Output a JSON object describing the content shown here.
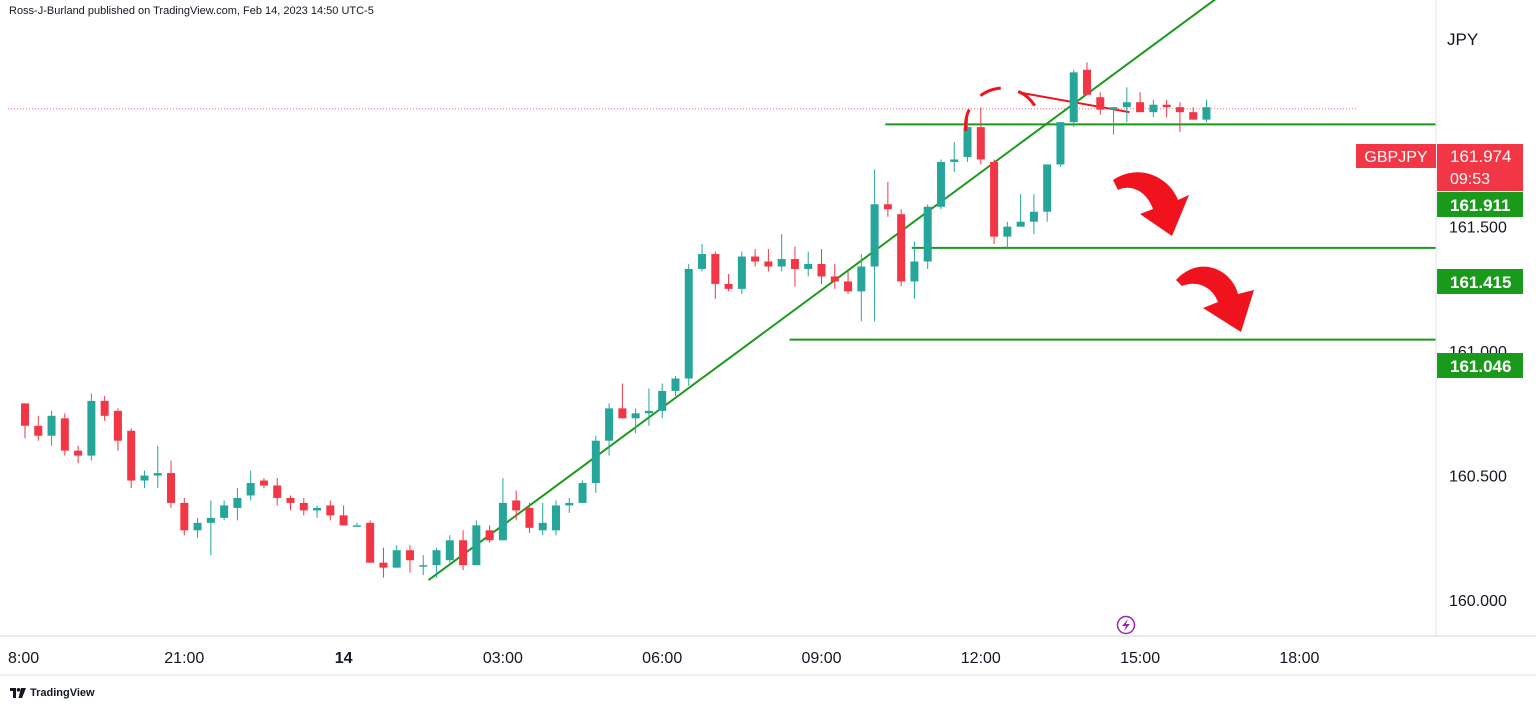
{
  "header": {
    "published": "Ross-J-Burland published on TradingView.com, Feb 14, 2023 14:50 UTC-5"
  },
  "currency": "JPY",
  "footer": {
    "brand": "TradingView",
    "logo_icon": "tradingview-logo-icon"
  },
  "colors": {
    "up": "#26a69a",
    "down": "#f23645",
    "trend": "#1a9a1a",
    "level": "#1a9a1a",
    "arrow": "#f0131e",
    "label_red": "#f23645",
    "label_green": "#1a9a1a",
    "grid": "#e0e3eb",
    "text": "#131722",
    "lightning": "#9c27b0"
  },
  "chart_data": {
    "type": "candlestick",
    "symbol": "GBPJPY",
    "y_ticks": [
      "160.000",
      "160.500",
      "161.000",
      "161.500"
    ],
    "x_ticks": [
      "8:00",
      "21:00",
      "14",
      "03:00",
      "06:00",
      "09:00",
      "12:00",
      "15:00",
      "18:00"
    ],
    "x_ticks_hours": [
      18,
      21,
      24,
      27,
      30,
      33,
      36,
      39,
      42
    ],
    "ylim": [
      159.85,
      162.3
    ],
    "current_price": {
      "value": 161.974,
      "label": "161.974",
      "countdown": "09:53"
    },
    "levels": [
      {
        "value": 161.911,
        "label": "161.911",
        "start_hour": 34.2
      },
      {
        "value": 161.415,
        "label": "161.415",
        "start_hour": 34.7
      },
      {
        "value": 161.046,
        "label": "161.046",
        "start_hour": 32.4
      }
    ],
    "trendline": {
      "x1": 25.6,
      "y1": 160.08,
      "x2": 41.6,
      "y2": 162.6
    },
    "resistance_line": {
      "x1": 36.7,
      "y1": 162.04,
      "x2": 38.8,
      "y2": 161.96
    },
    "candles_start_hour": 18.0,
    "candle_interval_hours": 0.25,
    "candles": [
      [
        160.79,
        160.79,
        160.65,
        160.7
      ],
      [
        160.7,
        160.74,
        160.64,
        160.66
      ],
      [
        160.66,
        160.76,
        160.62,
        160.74
      ],
      [
        160.73,
        160.75,
        160.58,
        160.6
      ],
      [
        160.6,
        160.62,
        160.55,
        160.58
      ],
      [
        160.58,
        160.83,
        160.56,
        160.8
      ],
      [
        160.8,
        160.82,
        160.72,
        160.74
      ],
      [
        160.76,
        160.77,
        160.6,
        160.64
      ],
      [
        160.68,
        160.69,
        160.45,
        160.48
      ],
      [
        160.48,
        160.52,
        160.45,
        160.5
      ],
      [
        160.5,
        160.62,
        160.45,
        160.51
      ],
      [
        160.51,
        160.56,
        160.37,
        160.39
      ],
      [
        160.39,
        160.41,
        160.26,
        160.28
      ],
      [
        160.28,
        160.33,
        160.25,
        160.31
      ],
      [
        160.31,
        160.4,
        160.18,
        160.33
      ],
      [
        160.33,
        160.4,
        160.32,
        160.38
      ],
      [
        160.37,
        160.45,
        160.32,
        160.41
      ],
      [
        160.42,
        160.52,
        160.4,
        160.47
      ],
      [
        160.48,
        160.49,
        160.45,
        160.46
      ],
      [
        160.46,
        160.49,
        160.38,
        160.41
      ],
      [
        160.41,
        160.42,
        160.36,
        160.39
      ],
      [
        160.39,
        160.41,
        160.34,
        160.36
      ],
      [
        160.36,
        160.38,
        160.33,
        160.37
      ],
      [
        160.38,
        160.4,
        160.32,
        160.34
      ],
      [
        160.34,
        160.38,
        160.3,
        160.3
      ],
      [
        160.3,
        160.31,
        160.3,
        160.3
      ],
      [
        160.31,
        160.32,
        160.15,
        160.15
      ],
      [
        160.15,
        160.21,
        160.09,
        160.13
      ],
      [
        160.13,
        160.22,
        160.13,
        160.2
      ],
      [
        160.2,
        160.22,
        160.11,
        160.16
      ],
      [
        160.14,
        160.18,
        160.1,
        160.14
      ],
      [
        160.14,
        160.21,
        160.09,
        160.2
      ],
      [
        160.16,
        160.26,
        160.15,
        160.24
      ],
      [
        160.24,
        160.28,
        160.12,
        160.14
      ],
      [
        160.14,
        160.32,
        160.14,
        160.3
      ],
      [
        160.28,
        160.3,
        160.23,
        160.24
      ],
      [
        160.24,
        160.49,
        160.24,
        160.39
      ],
      [
        160.4,
        160.44,
        160.32,
        160.36
      ],
      [
        160.37,
        160.39,
        160.27,
        160.29
      ],
      [
        160.28,
        160.39,
        160.26,
        160.31
      ],
      [
        160.28,
        160.4,
        160.26,
        160.38
      ],
      [
        160.38,
        160.41,
        160.35,
        160.39
      ],
      [
        160.39,
        160.48,
        160.4,
        160.47
      ],
      [
        160.47,
        160.66,
        160.43,
        160.64
      ],
      [
        160.64,
        160.79,
        160.58,
        160.77
      ],
      [
        160.77,
        160.87,
        160.73,
        160.73
      ],
      [
        160.73,
        160.77,
        160.67,
        160.75
      ],
      [
        160.75,
        160.85,
        160.7,
        160.76
      ],
      [
        160.76,
        160.87,
        160.73,
        160.84
      ],
      [
        160.84,
        160.9,
        160.82,
        160.89
      ],
      [
        160.89,
        161.35,
        160.86,
        161.33
      ],
      [
        161.33,
        161.43,
        161.32,
        161.39
      ],
      [
        161.39,
        161.4,
        161.21,
        161.27
      ],
      [
        161.27,
        161.31,
        161.24,
        161.25
      ],
      [
        161.25,
        161.4,
        161.23,
        161.38
      ],
      [
        161.38,
        161.41,
        161.34,
        161.36
      ],
      [
        161.36,
        161.41,
        161.32,
        161.34
      ],
      [
        161.34,
        161.47,
        161.32,
        161.37
      ],
      [
        161.37,
        161.42,
        161.26,
        161.33
      ],
      [
        161.33,
        161.4,
        161.3,
        161.35
      ],
      [
        161.35,
        161.41,
        161.27,
        161.3
      ],
      [
        161.3,
        161.35,
        161.25,
        161.28
      ],
      [
        161.28,
        161.32,
        161.23,
        161.24
      ],
      [
        161.24,
        161.39,
        161.12,
        161.34
      ],
      [
        161.34,
        161.73,
        161.12,
        161.59
      ],
      [
        161.59,
        161.68,
        161.54,
        161.57
      ],
      [
        161.55,
        161.57,
        161.26,
        161.28
      ],
      [
        161.28,
        161.44,
        161.21,
        161.36
      ],
      [
        161.36,
        161.59,
        161.33,
        161.58
      ],
      [
        161.58,
        161.77,
        161.57,
        161.76
      ],
      [
        161.76,
        161.84,
        161.72,
        161.77
      ],
      [
        161.78,
        161.95,
        161.76,
        161.9
      ],
      [
        161.9,
        161.98,
        161.75,
        161.77
      ],
      [
        161.76,
        161.77,
        161.43,
        161.46
      ],
      [
        161.46,
        161.52,
        161.41,
        161.5
      ],
      [
        161.5,
        161.63,
        161.5,
        161.52
      ],
      [
        161.52,
        161.63,
        161.47,
        161.56
      ],
      [
        161.56,
        161.75,
        161.52,
        161.75
      ],
      [
        161.75,
        161.92,
        161.74,
        161.92
      ],
      [
        161.92,
        162.13,
        161.9,
        162.12
      ],
      [
        162.13,
        162.16,
        162.03,
        162.03
      ],
      [
        162.02,
        162.04,
        161.95,
        161.97
      ],
      [
        161.97,
        161.98,
        161.87,
        161.98
      ],
      [
        161.98,
        162.06,
        161.92,
        162.0
      ],
      [
        162.0,
        162.04,
        161.96,
        161.96
      ],
      [
        161.96,
        162.01,
        161.94,
        161.99
      ],
      [
        161.99,
        162.01,
        161.94,
        161.98
      ],
      [
        161.98,
        162.0,
        161.88,
        161.96
      ],
      [
        161.96,
        161.98,
        161.93,
        161.93
      ],
      [
        161.93,
        162.01,
        161.92,
        161.98
      ]
    ]
  }
}
